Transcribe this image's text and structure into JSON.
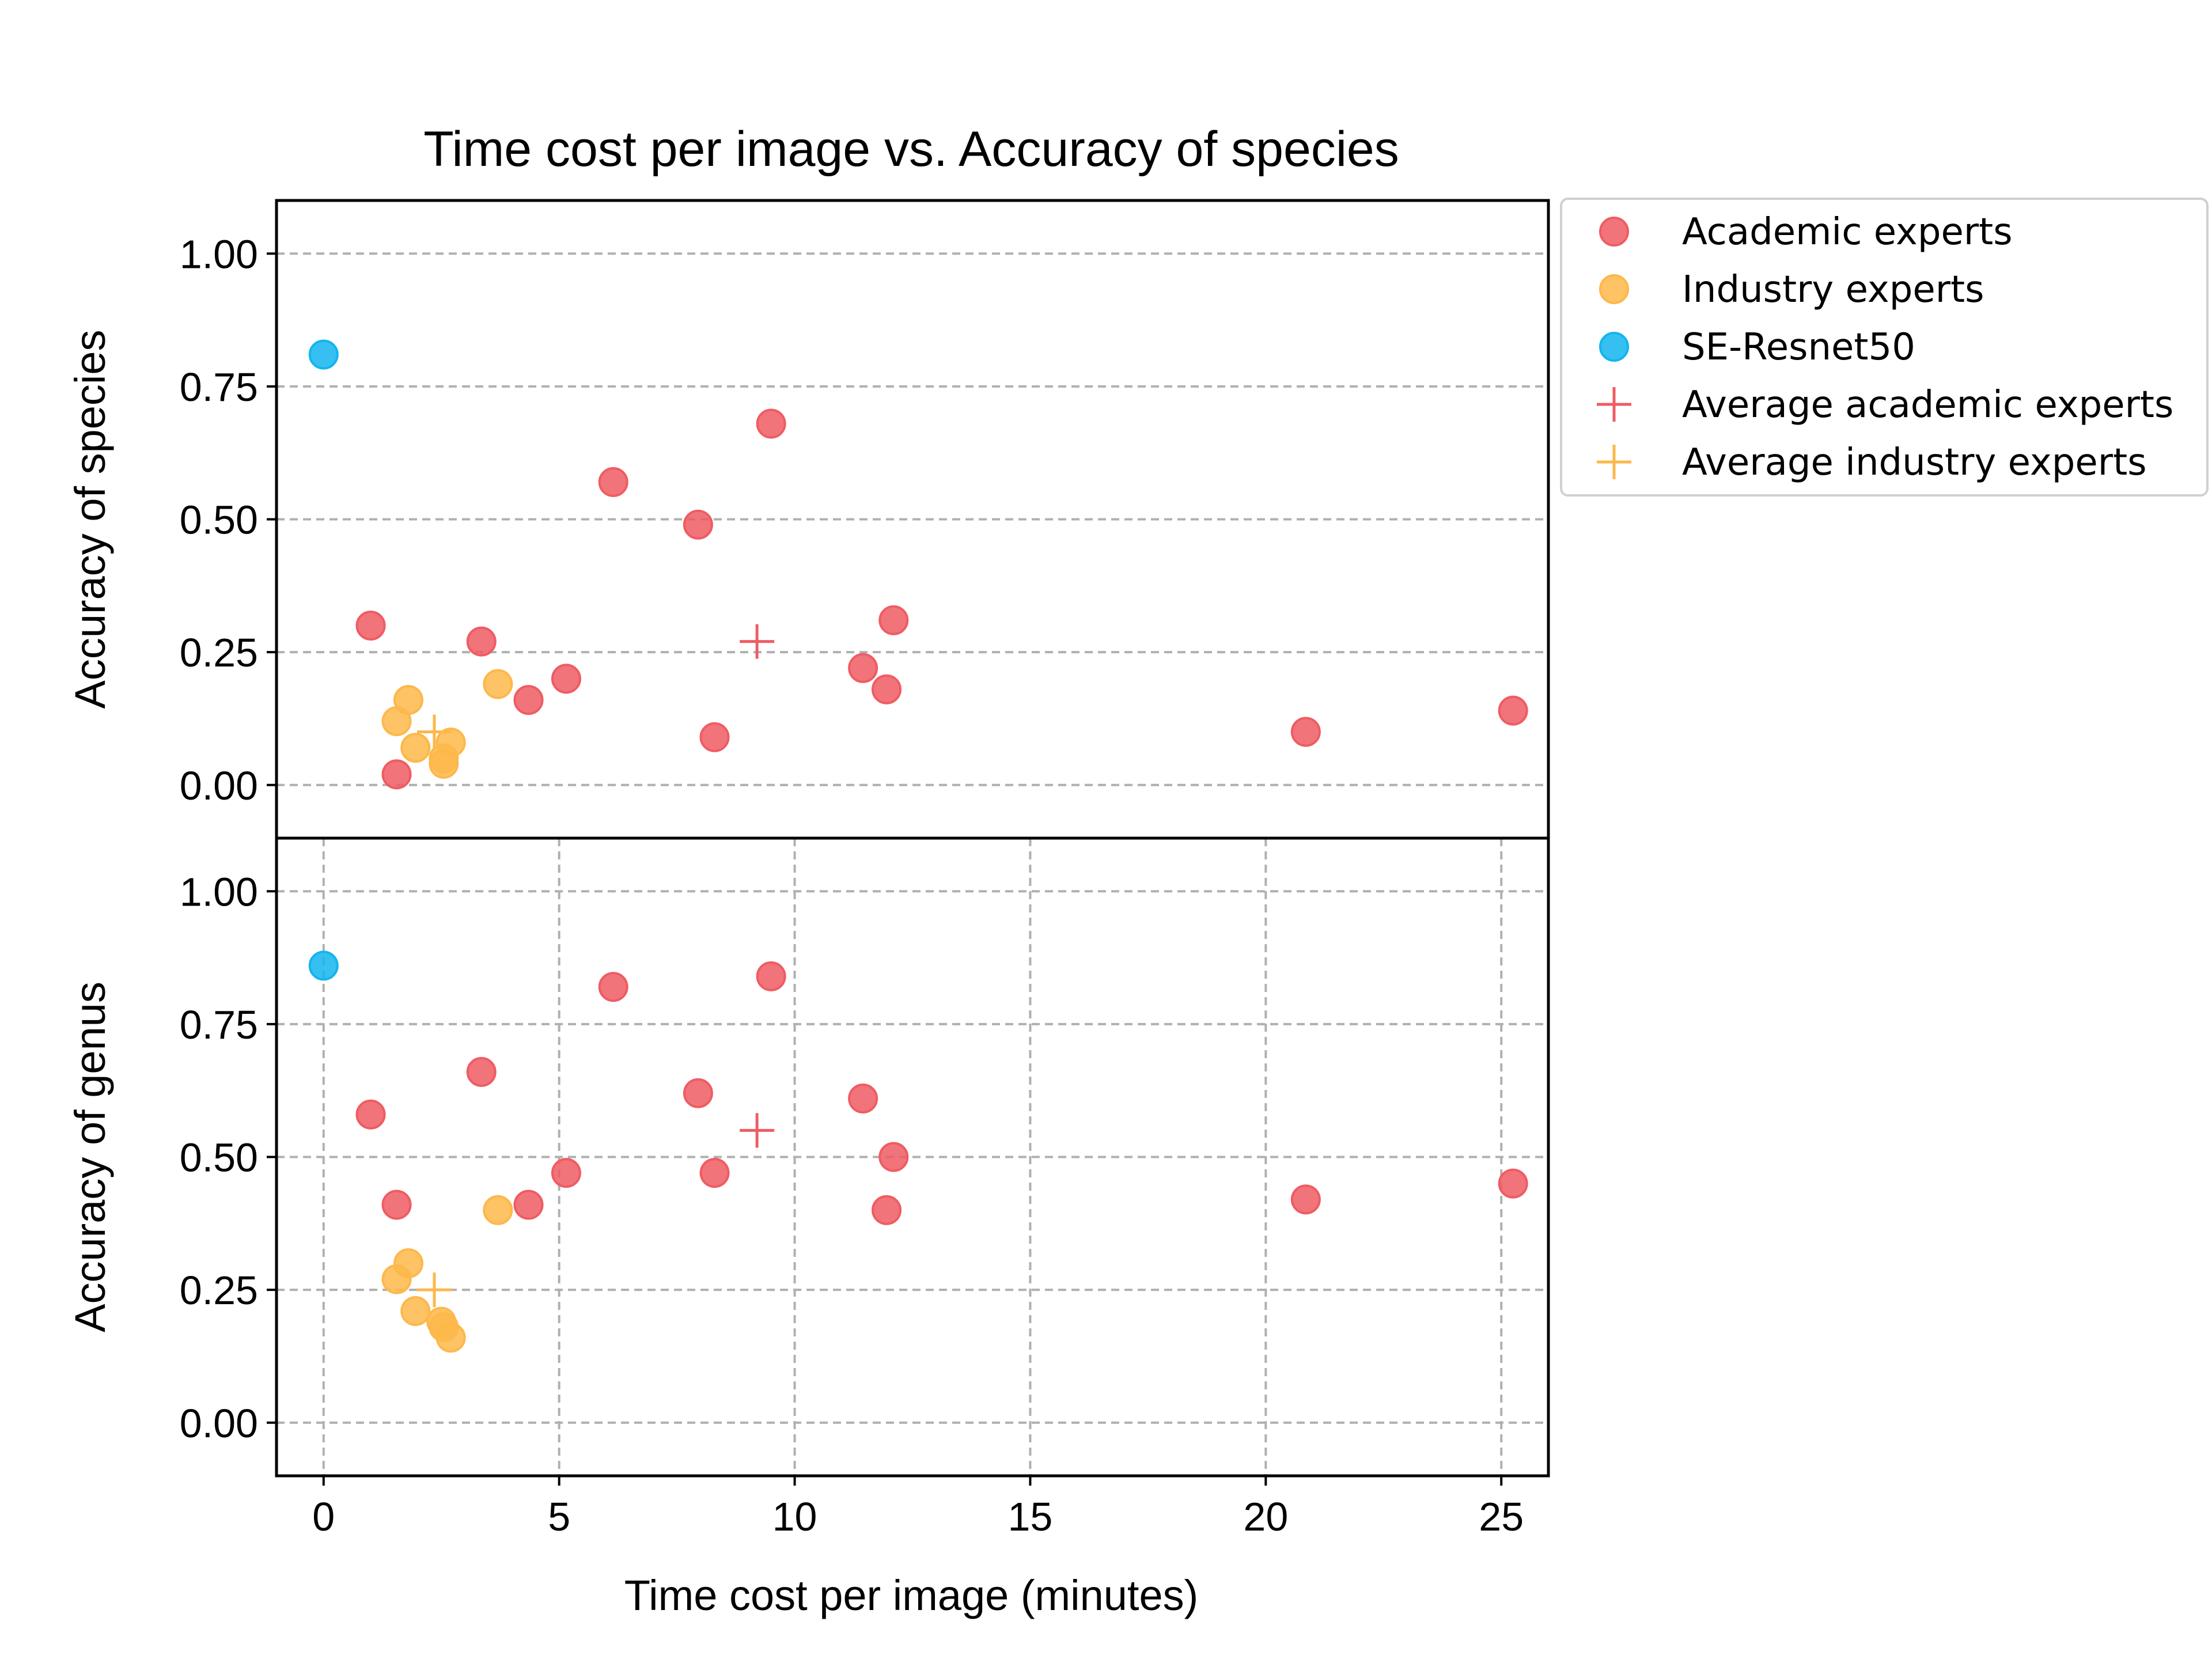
{
  "chart_data": {
    "type": "scatter",
    "title": "Time cost per image vs. Accuracy of species",
    "xlabel": "Time cost per image (minutes)",
    "xlim": [
      -1,
      26
    ],
    "xticks": [
      0,
      5,
      10,
      15,
      20,
      25
    ],
    "ylim": [
      -0.1,
      1.1
    ],
    "yticks": [
      0.0,
      0.25,
      0.5,
      0.75,
      1.0
    ],
    "ytick_labels": [
      "0.00",
      "0.25",
      "0.50",
      "0.75",
      "1.00"
    ],
    "grid": true,
    "legend_position": "outside-top-right",
    "legend": [
      {
        "label": "Academic experts",
        "marker": "circle",
        "color": "#ef5c63"
      },
      {
        "label": "Industry experts",
        "marker": "circle",
        "color": "#fdb84a"
      },
      {
        "label": "SE-Resnet50",
        "marker": "circle",
        "color": "#13b5ef"
      },
      {
        "label": "Average academic experts",
        "marker": "plus",
        "color": "#ef5c63"
      },
      {
        "label": "Average industry experts",
        "marker": "plus",
        "color": "#fdb84a"
      }
    ],
    "panels": [
      {
        "ylabel": "Accuracy of species",
        "series": [
          {
            "name": "Academic experts",
            "x": [
              1.0,
              1.55,
              3.35,
              4.35,
              5.15,
              6.15,
              7.95,
              8.3,
              9.5,
              11.45,
              11.95,
              12.1,
              20.85,
              25.25
            ],
            "y": [
              0.3,
              0.02,
              0.27,
              0.16,
              0.2,
              0.57,
              0.49,
              0.09,
              0.68,
              0.22,
              0.18,
              0.31,
              0.1,
              0.14
            ]
          },
          {
            "name": "Industry experts",
            "x": [
              1.55,
              1.8,
              1.95,
              2.55,
              2.7,
              2.55,
              3.7
            ],
            "y": [
              0.12,
              0.16,
              0.07,
              0.05,
              0.08,
              0.04,
              0.19
            ]
          },
          {
            "name": "SE-Resnet50",
            "x": [
              0.0
            ],
            "y": [
              0.81
            ]
          },
          {
            "name": "Average academic experts",
            "x": [
              9.2
            ],
            "y": [
              0.27
            ]
          },
          {
            "name": "Average industry experts",
            "x": [
              2.35
            ],
            "y": [
              0.1
            ]
          }
        ]
      },
      {
        "ylabel": "Accuracy of genus",
        "series": [
          {
            "name": "Academic experts",
            "x": [
              1.0,
              1.55,
              3.35,
              4.35,
              5.15,
              6.15,
              7.95,
              8.3,
              9.5,
              11.45,
              11.95,
              12.1,
              20.85,
              25.25
            ],
            "y": [
              0.58,
              0.41,
              0.66,
              0.41,
              0.47,
              0.82,
              0.62,
              0.47,
              0.84,
              0.61,
              0.4,
              0.5,
              0.42,
              0.45
            ]
          },
          {
            "name": "Industry experts",
            "x": [
              1.55,
              1.8,
              1.95,
              2.5,
              2.55,
              2.7,
              3.7
            ],
            "y": [
              0.27,
              0.3,
              0.21,
              0.19,
              0.18,
              0.16,
              0.4
            ]
          },
          {
            "name": "SE-Resnet50",
            "x": [
              0.0
            ],
            "y": [
              0.86
            ]
          },
          {
            "name": "Average academic experts",
            "x": [
              9.2
            ],
            "y": [
              0.55
            ]
          },
          {
            "name": "Average industry experts",
            "x": [
              2.35
            ],
            "y": [
              0.25
            ]
          }
        ]
      }
    ]
  }
}
